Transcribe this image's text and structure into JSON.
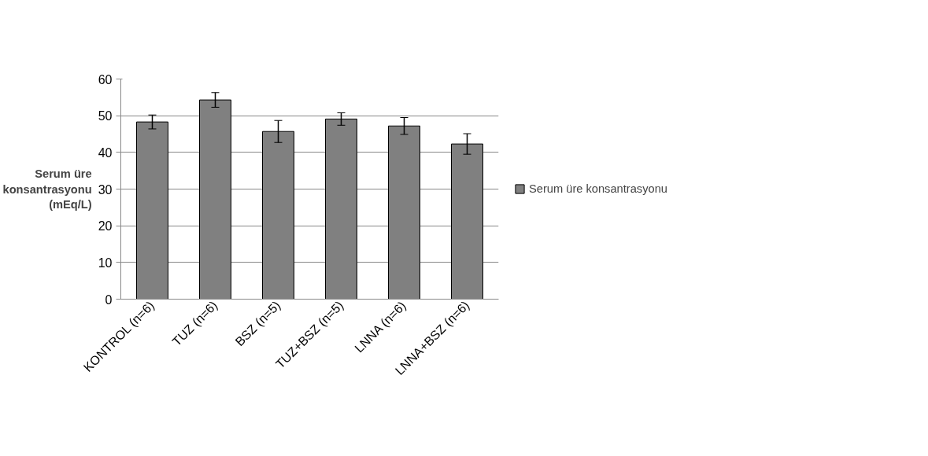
{
  "chart_data": {
    "type": "bar",
    "ylabel": "Serum üre\nkonsantrasyonu\n(mEq/L)",
    "categories": [
      "KONTROL (n=6)",
      "TUZ (n=6)",
      "BSZ (n=5)",
      "TUZ+BSZ (n=5)",
      "LNNA (n=6)",
      "LNNA+BSZ (n=6)"
    ],
    "series": [
      {
        "name": "Serum üre konsantrasyonu",
        "color": "#808080",
        "values": [
          48.3,
          54.3,
          45.7,
          49.1,
          47.2,
          42.3
        ],
        "errors": [
          1.9,
          2.0,
          3.0,
          1.7,
          2.3,
          2.8
        ]
      }
    ],
    "ylim": [
      0,
      60
    ],
    "yticks": [
      0,
      10,
      20,
      30,
      40,
      50,
      60
    ],
    "grid": "y",
    "legend": "right"
  }
}
